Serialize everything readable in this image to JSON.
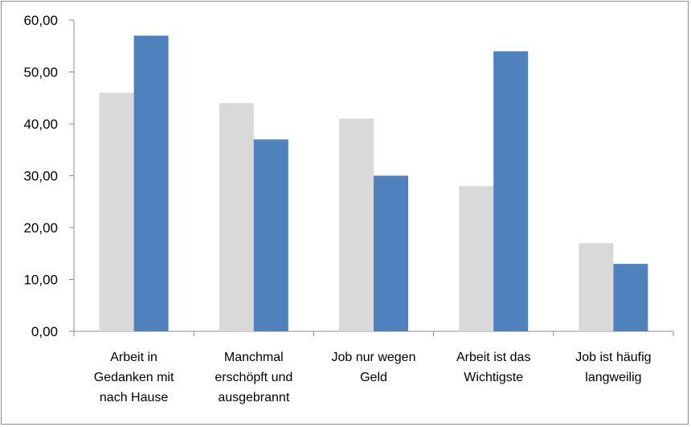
{
  "chart_data": {
    "type": "bar",
    "categories": [
      [
        "Arbeit in",
        "Gedanken mit",
        "nach Hause"
      ],
      [
        "Manchmal",
        "erschöpft und",
        "ausgebrannt"
      ],
      [
        "Job nur wegen",
        "Geld"
      ],
      [
        "Arbeit ist das",
        "Wichtigste"
      ],
      [
        "Job ist häufig",
        "langweilig"
      ]
    ],
    "series": [
      {
        "values": [
          46,
          44,
          41,
          28,
          17
        ],
        "color": "#d9d9d9"
      },
      {
        "values": [
          57,
          37,
          30,
          54,
          13
        ],
        "color": "#4f81bd"
      }
    ],
    "ylim": [
      0,
      60
    ],
    "yticks": [
      "0,00",
      "10,00",
      "20,00",
      "30,00",
      "40,00",
      "50,00",
      "60,00"
    ],
    "grid": false,
    "legend": "none"
  }
}
